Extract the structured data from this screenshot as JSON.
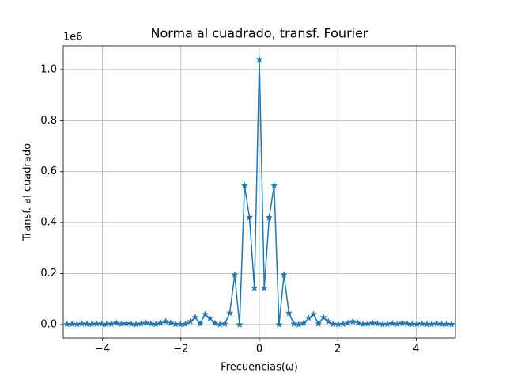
{
  "chart_data": {
    "type": "line",
    "title": "Norma al cuadrado, transf. Fourier",
    "x_label": "Frecuencias(ω)",
    "y_label": "Transf. al cuadrado",
    "y_offset_label": "1e6",
    "color": "#1f77b4",
    "marker": "star",
    "grid": true,
    "x": [
      -4.901,
      -4.775,
      -4.65,
      -4.524,
      -4.398,
      -4.273,
      -4.147,
      -4.021,
      -3.896,
      -3.77,
      -3.644,
      -3.519,
      -3.393,
      -3.267,
      -3.142,
      -3.016,
      -2.89,
      -2.765,
      -2.639,
      -2.513,
      -2.388,
      -2.262,
      -2.136,
      -2.011,
      -1.885,
      -1.759,
      -1.634,
      -1.508,
      -1.382,
      -1.257,
      -1.131,
      -1.005,
      -0.88,
      -0.754,
      -0.628,
      -0.503,
      -0.377,
      -0.251,
      -0.126,
      0,
      0.126,
      0.251,
      0.377,
      0.503,
      0.628,
      0.754,
      0.88,
      1.005,
      1.131,
      1.257,
      1.382,
      1.508,
      1.634,
      1.759,
      1.885,
      2.011,
      2.136,
      2.262,
      2.388,
      2.513,
      2.639,
      2.765,
      2.89,
      3.016,
      3.142,
      3.267,
      3.393,
      3.519,
      3.644,
      3.77,
      3.896,
      4.021,
      4.147,
      4.273,
      4.398,
      4.524,
      4.65,
      4.775,
      4.901
    ],
    "values": [
      0.001,
      0.002,
      0.001,
      0.003,
      0.002,
      0.001,
      0.003,
      0.002,
      0.001,
      0.003,
      0.006,
      0.002,
      0.004,
      0.002,
      0.001,
      0.003,
      0.006,
      0.003,
      0.001,
      0.006,
      0.012,
      0.006,
      0.002,
      0.001,
      0.002,
      0.012,
      0.028,
      0.003,
      0.04,
      0.025,
      0.005,
      0,
      0.003,
      0.045,
      0.195,
      0,
      0.545,
      0.42,
      0.143,
      1.04,
      0.143,
      0.42,
      0.545,
      0,
      0.195,
      0.045,
      0.003,
      0,
      0.005,
      0.025,
      0.04,
      0.003,
      0.028,
      0.012,
      0.002,
      0.001,
      0.002,
      0.006,
      0.012,
      0.006,
      0.001,
      0.003,
      0.006,
      0.003,
      0.001,
      0.002,
      0.004,
      0.002,
      0.006,
      0.003,
      0.001,
      0.002,
      0.003,
      0.001,
      0.002,
      0.003,
      0.001,
      0.002,
      0.001
    ],
    "xlim": [
      -5,
      5
    ],
    "ylim": [
      -0.053,
      1.093
    ],
    "xticks": [
      {
        "value": -4,
        "label": "−4"
      },
      {
        "value": -2,
        "label": "−2"
      },
      0,
      2,
      4
    ],
    "yticks": [
      {
        "value": 0,
        "label": "0.0"
      },
      0.2,
      0.4,
      0.6,
      0.8,
      {
        "value": 1,
        "label": "1.0"
      }
    ]
  }
}
